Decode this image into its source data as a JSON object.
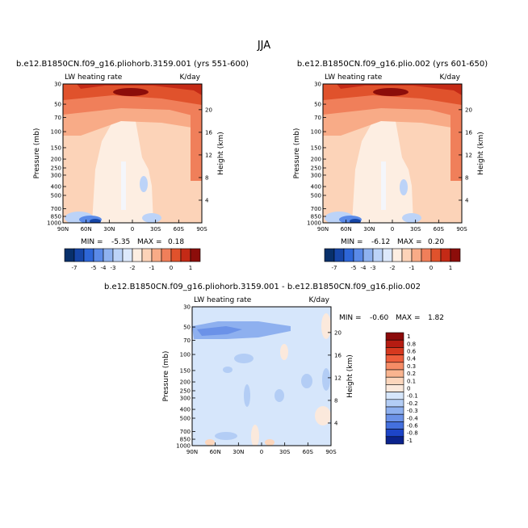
{
  "figure_title": "JJA",
  "chart_data": [
    {
      "type": "heatmap",
      "title": "b.e12.B1850CN.f09_g16.pliohorb.3159.001 (yrs 551-600)",
      "left_label": "LW heating rate",
      "units": "K/day",
      "ylabel": "Pressure (mb)",
      "y2label": "Height (km)",
      "x_ticks": [
        "90N",
        "60N",
        "30N",
        "0",
        "30S",
        "60S",
        "90S"
      ],
      "y_ticks": [
        "30",
        "50",
        "70",
        "100",
        "150",
        "200",
        "250",
        "300",
        "400",
        "500",
        "700",
        "850",
        "1000"
      ],
      "y2_ticks": [
        "20",
        "16",
        "12",
        "8",
        "4"
      ],
      "min_label": "MIN =",
      "min_value": "-5.35",
      "max_label": "MAX =",
      "max_value": "0.18",
      "colorbar_labels": [
        "-7",
        "-5",
        "-4",
        "-3",
        "-2",
        "-1",
        "0",
        "1"
      ]
    },
    {
      "type": "heatmap",
      "title": "b.e12.B1850CN.f09_g16.plio.002 (yrs 601-650)",
      "left_label": "LW heating rate",
      "units": "K/day",
      "ylabel": "Pressure (mb)",
      "y2label": "Height (km)",
      "x_ticks": [
        "90N",
        "60N",
        "30N",
        "0",
        "30S",
        "60S",
        "90S"
      ],
      "y_ticks": [
        "30",
        "50",
        "70",
        "100",
        "150",
        "200",
        "250",
        "300",
        "400",
        "500",
        "700",
        "850",
        "1000"
      ],
      "y2_ticks": [
        "20",
        "16",
        "12",
        "8",
        "4"
      ],
      "min_label": "MIN =",
      "min_value": "-6.12",
      "max_label": "MAX =",
      "max_value": "0.20",
      "colorbar_labels": [
        "-7",
        "-5",
        "-4",
        "-3",
        "-2",
        "-1",
        "0",
        "1"
      ]
    },
    {
      "type": "heatmap",
      "title": "b.e12.B1850CN.f09_g16.pliohorb.3159.001 - b.e12.B1850CN.f09_g16.plio.002",
      "left_label": "LW heating rate",
      "units": "K/day",
      "ylabel": "Pressure (mb)",
      "y2label": "Height (km)",
      "x_ticks": [
        "90N",
        "60N",
        "30N",
        "0",
        "30S",
        "60S",
        "90S"
      ],
      "y_ticks": [
        "30",
        "50",
        "70",
        "100",
        "150",
        "200",
        "250",
        "300",
        "400",
        "500",
        "700",
        "850",
        "1000"
      ],
      "y2_ticks": [
        "20",
        "16",
        "12",
        "8",
        "4"
      ],
      "min_label": "MIN =",
      "min_value": "-0.60",
      "max_label": "MAX =",
      "max_value": "1.82",
      "colorbar_labels": [
        "1",
        "0.8",
        "0.6",
        "0.4",
        "0.3",
        "0.2",
        "0.1",
        "0",
        "-0.1",
        "-0.2",
        "-0.3",
        "-0.4",
        "-0.6",
        "-0.8",
        "-1"
      ]
    }
  ],
  "colors": {
    "abs_scale": [
      "#08306b",
      "#1646a8",
      "#2d66d8",
      "#5a8ae8",
      "#8fb2f0",
      "#bcd3f8",
      "#dde9fc",
      "#fdeee2",
      "#fcd3b8",
      "#f8ab87",
      "#f07f5a",
      "#e0522c",
      "#c42a16",
      "#8c0d0a"
    ],
    "diff_scale": [
      "#8b0a0a",
      "#b51c12",
      "#d6391f",
      "#ee5e3c",
      "#f68c66",
      "#f9b48f",
      "#fcd6bc",
      "#fbe9dc",
      "#d6e6fb",
      "#b3cdf5",
      "#8eb0ef",
      "#6b92e8",
      "#4470de",
      "#1d45c8",
      "#0b238c"
    ]
  }
}
